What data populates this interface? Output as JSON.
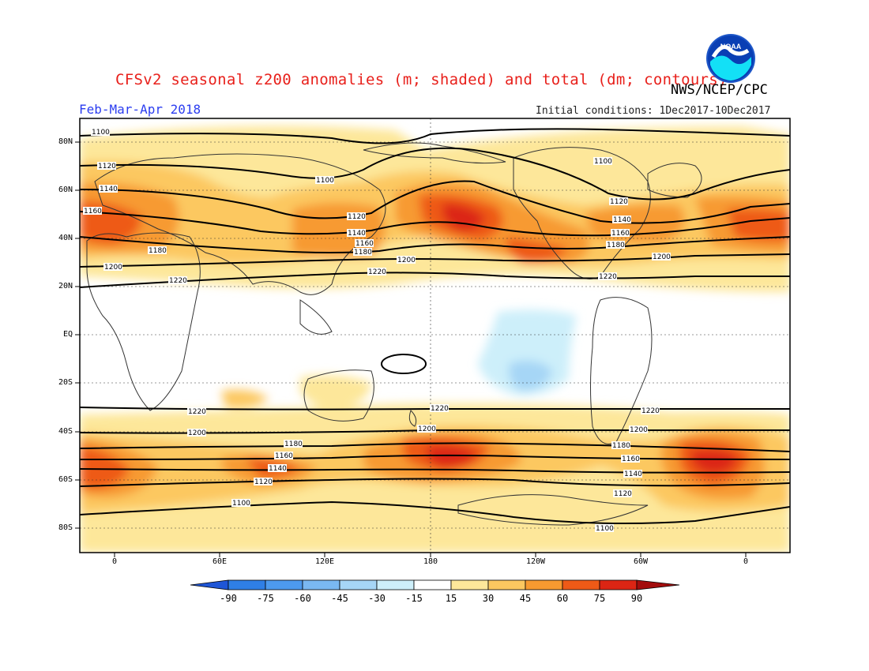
{
  "title": "CFSv2 seasonal z200 anomalies (m; shaded) and total (dm; contours)",
  "agency": "NWS/NCEP/CPC",
  "season": "Feb-Mar-Apr 2018",
  "initial_conditions": "Initial conditions: 1Dec2017-10Dec2017",
  "logo": {
    "text": "NOAA",
    "icon": "noaa-logo"
  },
  "lat_labels": [
    "80N",
    "60N",
    "40N",
    "20N",
    "EQ",
    "20S",
    "40S",
    "60S",
    "80S"
  ],
  "lon_labels": [
    "0",
    "60E",
    "120E",
    "180",
    "120W",
    "60W",
    "0"
  ],
  "colorbar": {
    "labels": [
      "-90",
      "-75",
      "-60",
      "-45",
      "-30",
      "-15",
      "15",
      "30",
      "45",
      "60",
      "75",
      "90"
    ],
    "colors": [
      "#1f56d6",
      "#2f7fe6",
      "#4d9aee",
      "#7ab8f2",
      "#a6d6f6",
      "#cdeffa",
      "#ffffff",
      "#fde79a",
      "#fcc860",
      "#f79a30",
      "#ee5a17",
      "#dc2514",
      "#a30d0d"
    ]
  },
  "contour_labels": {
    "nh": [
      "1100",
      "1120",
      "1140",
      "1160",
      "1180",
      "1200",
      "1220"
    ],
    "sh": [
      "1220",
      "1200",
      "1180",
      "1160",
      "1140",
      "1120",
      "1100"
    ]
  },
  "colors": {
    "title": "#e8201b",
    "season": "#2b3df0"
  }
}
